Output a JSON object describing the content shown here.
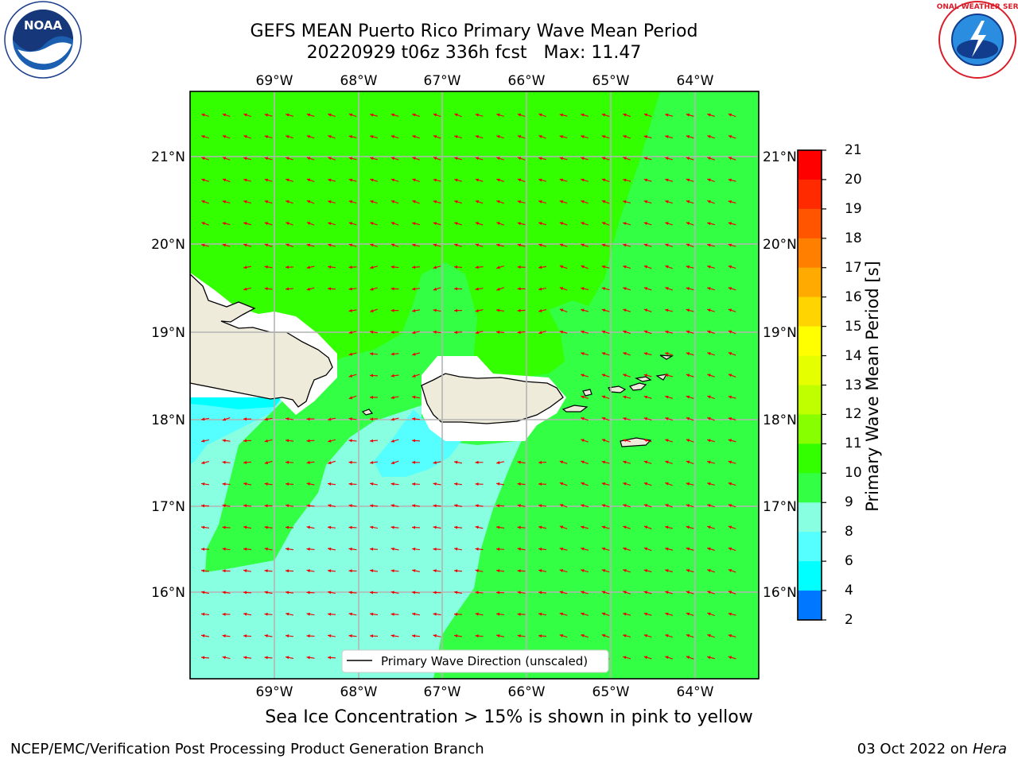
{
  "title": {
    "line1": "GEFS MEAN Puerto Rico Primary Wave Mean Period",
    "line2_run": "20220929 t06z 336h fcst",
    "line2_max": "Max: 11.47"
  },
  "map": {
    "lon_ticks": [
      "69°W",
      "68°W",
      "67°W",
      "66°W",
      "65°W",
      "64°W"
    ],
    "lat_ticks": [
      "21°N",
      "20°N",
      "19°N",
      "18°N",
      "17°N",
      "16°N"
    ],
    "legend_label": "Primary Wave Direction (unscaled)",
    "colors": {
      "green_11_12": "#33ff00",
      "green_10_11": "#33ff44",
      "aqua_9_10": "#88ffe0",
      "cyan_8_9": "#55ffff",
      "cyan_6_8": "#00ffff",
      "land": "#efebdb",
      "arrow": "#ee0000"
    }
  },
  "colorbar": {
    "title": "Primary Wave Mean Period [s]",
    "ticks": [
      "21",
      "20",
      "19",
      "18",
      "17",
      "16",
      "15",
      "14",
      "13",
      "12",
      "11",
      "10",
      "9",
      "8",
      "6",
      "4",
      "2"
    ],
    "colors": [
      "#ff0000",
      "#ff2a00",
      "#ff5500",
      "#ff8000",
      "#ffaa00",
      "#ffd400",
      "#ffff00",
      "#e6ff00",
      "#c0ff00",
      "#88ff00",
      "#33ff00",
      "#33ff44",
      "#88ffe0",
      "#55ffff",
      "#00ffff",
      "#0077ff",
      "#0000ff"
    ]
  },
  "caption": "Sea Ice Concentration > 15% is shown in pink to yellow",
  "footer": {
    "left": "NCEP/EMC/Verification Post Processing Product Generation Branch",
    "right_date": "03 Oct 2022 on",
    "right_machine": "Hera"
  },
  "logos": {
    "noaa_text": "NOAA",
    "nws_text": "NATIONAL WEATHER SERVICE"
  }
}
